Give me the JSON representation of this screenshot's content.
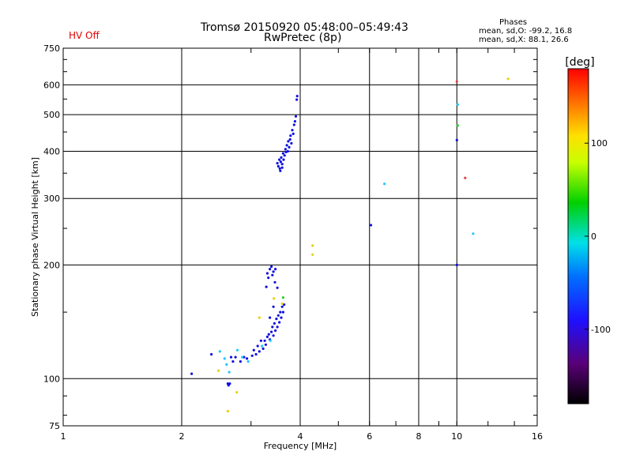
{
  "header": {
    "title": "Tromsø 20150920 05:48:00–05:49:43",
    "subtitle": "RwPretec (8p)",
    "status": "HV Off",
    "status_color": "#e00000",
    "phase_title": "Phases",
    "phase_o": "mean, sd,O: -99.2, 16.8",
    "phase_x": "mean, sd,X: 88.1, 26.6"
  },
  "chart_data": {
    "type": "scatter",
    "xlabel": "Frequency [MHz]",
    "ylabel": "Stationary phase Virtual Height [km]",
    "xscale": "log",
    "yscale": "log",
    "xlim": [
      1,
      16
    ],
    "ylim": [
      75,
      750
    ],
    "xticks": [
      1,
      2,
      4,
      6,
      8,
      10,
      16
    ],
    "xtick_labels": [
      "1",
      "2",
      "4",
      "6",
      "8",
      "10",
      "16"
    ],
    "yticks": [
      75,
      100,
      200,
      300,
      400,
      500,
      600,
      750
    ],
    "ytick_labels": [
      "75",
      "100",
      "200",
      "300",
      "400",
      "500",
      "600",
      "750"
    ],
    "grid": true,
    "colorbar": {
      "label": "[deg]",
      "range": [
        -180,
        180
      ],
      "ticks": [
        100,
        0,
        -100
      ],
      "tick_labels": [
        "100",
        "0",
        "-100"
      ]
    },
    "series": [
      {
        "color": "#1010e0",
        "points": [
          [
            2.12,
            103
          ],
          [
            2.38,
            116
          ],
          [
            2.62,
            97
          ],
          [
            2.63,
            96
          ],
          [
            2.65,
            97
          ],
          [
            2.67,
            114
          ],
          [
            2.7,
            111
          ],
          [
            2.74,
            114
          ],
          [
            2.82,
            111
          ],
          [
            2.88,
            114
          ],
          [
            2.93,
            113
          ],
          [
            3.02,
            115
          ],
          [
            3.05,
            119
          ],
          [
            3.09,
            116
          ],
          [
            3.12,
            122
          ],
          [
            3.15,
            118
          ],
          [
            3.18,
            126
          ],
          [
            3.22,
            120
          ],
          [
            3.25,
            126
          ],
          [
            3.27,
            123
          ],
          [
            3.3,
            129
          ],
          [
            3.33,
            131
          ],
          [
            3.35,
            127
          ],
          [
            3.38,
            133
          ],
          [
            3.4,
            137
          ],
          [
            3.42,
            130
          ],
          [
            3.44,
            140
          ],
          [
            3.46,
            134
          ],
          [
            3.48,
            144
          ],
          [
            3.5,
            137
          ],
          [
            3.52,
            147
          ],
          [
            3.54,
            141
          ],
          [
            3.56,
            150
          ],
          [
            3.58,
            145
          ],
          [
            3.6,
            155
          ],
          [
            3.62,
            150
          ],
          [
            3.64,
            157
          ],
          [
            3.35,
            145
          ],
          [
            3.42,
            155
          ],
          [
            3.3,
            190
          ],
          [
            3.32,
            185
          ],
          [
            3.35,
            195
          ],
          [
            3.38,
            198
          ],
          [
            3.4,
            188
          ],
          [
            3.42,
            192
          ],
          [
            3.45,
            180
          ],
          [
            3.46,
            195
          ],
          [
            3.28,
            175
          ],
          [
            3.5,
            174
          ],
          [
            3.5,
            372
          ],
          [
            3.52,
            365
          ],
          [
            3.54,
            380
          ],
          [
            3.55,
            360
          ],
          [
            3.57,
            375
          ],
          [
            3.58,
            385
          ],
          [
            3.6,
            370
          ],
          [
            3.62,
            395
          ],
          [
            3.63,
            380
          ],
          [
            3.65,
            390
          ],
          [
            3.67,
            405
          ],
          [
            3.68,
            398
          ],
          [
            3.7,
            415
          ],
          [
            3.72,
            400
          ],
          [
            3.73,
            425
          ],
          [
            3.75,
            410
          ],
          [
            3.77,
            430
          ],
          [
            3.78,
            440
          ],
          [
            3.8,
            420
          ],
          [
            3.82,
            455
          ],
          [
            3.84,
            445
          ],
          [
            3.86,
            470
          ],
          [
            3.88,
            480
          ],
          [
            3.9,
            495
          ],
          [
            3.92,
            548
          ],
          [
            3.93,
            560
          ],
          [
            3.56,
            355
          ],
          [
            3.6,
            362
          ],
          [
            6.05,
            255
          ],
          [
            10.0,
            428
          ],
          [
            10.0,
            200
          ]
        ]
      },
      {
        "color": "#1ec8ff",
        "points": [
          [
            2.5,
            118
          ],
          [
            2.57,
            113
          ],
          [
            2.6,
            109
          ],
          [
            2.64,
            104
          ],
          [
            2.77,
            119
          ],
          [
            2.85,
            114
          ],
          [
            2.95,
            111
          ],
          [
            3.2,
            122
          ],
          [
            3.36,
            126
          ],
          [
            6.55,
            328
          ],
          [
            11.0,
            242
          ],
          [
            10.05,
            532
          ]
        ]
      },
      {
        "color": "#e8d000",
        "points": [
          [
            2.48,
            105
          ],
          [
            2.62,
            82
          ],
          [
            2.76,
            92
          ],
          [
            3.15,
            145
          ],
          [
            3.43,
            163
          ],
          [
            3.6,
            158
          ],
          [
            4.3,
            225
          ],
          [
            4.3,
            213
          ],
          [
            13.5,
            622
          ]
        ]
      },
      {
        "color": "#2ad22a",
        "points": [
          [
            3.62,
            164
          ],
          [
            10.05,
            468
          ]
        ]
      },
      {
        "color": "#e04040",
        "points": [
          [
            10.5,
            340
          ],
          [
            10.0,
            612
          ]
        ]
      }
    ]
  }
}
